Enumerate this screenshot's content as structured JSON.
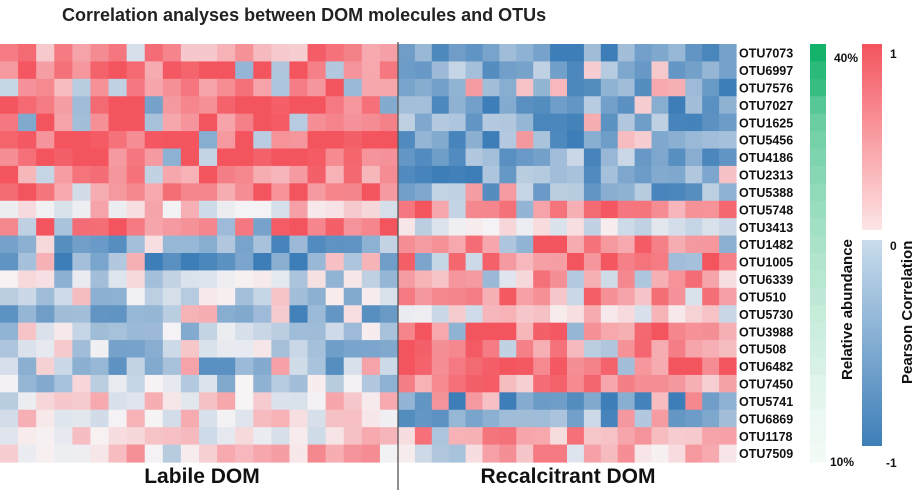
{
  "chart_data": {
    "type": "heatmap",
    "title": "Correlation analyses between DOM molecules and OTUs",
    "groups": [
      "Labile DOM",
      "Recalcitrant DOM"
    ],
    "otus": [
      "OTU7073",
      "OTU6997",
      "OTU7576",
      "OTU7027",
      "OTU1625",
      "OTU5456",
      "OTU4186",
      "OTU2313",
      "OTU5388",
      "OTU5748",
      "OTU3413",
      "OTU1482",
      "OTU1005",
      "OTU6339",
      "OTU510",
      "OTU5730",
      "OTU3988",
      "OTU508",
      "OTU6482",
      "OTU7450",
      "OTU5741",
      "OTU6869",
      "OTU1178",
      "OTU7509"
    ],
    "relative_abundance": {
      "label": "Relative abundance",
      "max_label": "40%",
      "min_label": "10%",
      "values": [
        0.4,
        0.38,
        0.37,
        0.34,
        0.32,
        0.31,
        0.3,
        0.29,
        0.28,
        0.27,
        0.26,
        0.25,
        0.24,
        0.23,
        0.22,
        0.21,
        0.2,
        0.19,
        0.18,
        0.16,
        0.15,
        0.13,
        0.12,
        0.1
      ]
    },
    "color_scale": {
      "label": "Pearson Correlation",
      "max_label": "1",
      "mid_label": "0",
      "min_label": "-1",
      "range": [
        -1,
        1
      ]
    },
    "colors": {
      "positive": "#f4545e",
      "neutral": "#f7f4f5",
      "negative": "#3d7eb8",
      "abundance_high": "#15b26c",
      "abundance_low": "#f2faf6",
      "divider": "#555555"
    },
    "row_profiles": [
      [
        0.6,
        -0.7
      ],
      [
        0.8,
        -0.6
      ],
      [
        0.7,
        -0.8
      ],
      [
        0.9,
        -0.7
      ],
      [
        0.85,
        -0.6
      ],
      [
        0.85,
        -0.7
      ],
      [
        0.8,
        -0.6
      ],
      [
        0.75,
        -0.7
      ],
      [
        0.7,
        -0.6
      ],
      [
        0.15,
        0.7
      ],
      [
        0.85,
        -0.15
      ],
      [
        -0.6,
        0.8
      ],
      [
        -0.7,
        0.75
      ],
      [
        -0.2,
        0.5
      ],
      [
        -0.3,
        0.6
      ],
      [
        -0.6,
        0.1
      ],
      [
        -0.3,
        0.7
      ],
      [
        -0.4,
        0.7
      ],
      [
        -0.5,
        0.8
      ],
      [
        -0.3,
        0.6
      ],
      [
        0.2,
        -0.8
      ],
      [
        0.1,
        -0.6
      ],
      [
        0.1,
        0.5
      ],
      [
        0.3,
        0.4
      ]
    ]
  }
}
